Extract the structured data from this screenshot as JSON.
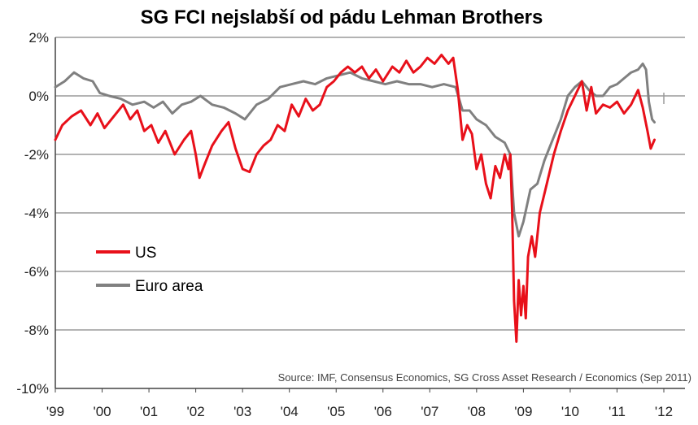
{
  "chart_data": {
    "type": "line",
    "title": "SG FCI nejslabší od pádu Lehman Brothers",
    "xlabel": "",
    "ylabel": "",
    "x_tick_labels": [
      "'99",
      "'00",
      "'01",
      "'02",
      "'03",
      "'04",
      "'05",
      "'06",
      "'07",
      "'08",
      "'09",
      "'10",
      "'11",
      "'12"
    ],
    "x_range": [
      1999,
      2012
    ],
    "y_tick_labels": [
      "2%",
      "0%",
      "-2%",
      "-4%",
      "-6%",
      "-8%",
      "-10%"
    ],
    "y_ticks": [
      2,
      0,
      -2,
      -4,
      -6,
      -8,
      -10
    ],
    "ylim": [
      -10,
      2
    ],
    "grid": "horizontal",
    "legend_position": "left-middle",
    "source": "Source: IMF, Consensus Economics, SG Cross Asset Research / Economics (Sep 2011)",
    "series": [
      {
        "name": "US",
        "color": "#e8101a",
        "points": [
          [
            1999.0,
            -1.5
          ],
          [
            1999.15,
            -1.0
          ],
          [
            1999.35,
            -0.7
          ],
          [
            1999.55,
            -0.5
          ],
          [
            1999.75,
            -1.0
          ],
          [
            1999.9,
            -0.6
          ],
          [
            2000.05,
            -1.1
          ],
          [
            2000.25,
            -0.7
          ],
          [
            2000.45,
            -0.3
          ],
          [
            2000.6,
            -0.8
          ],
          [
            2000.75,
            -0.5
          ],
          [
            2000.9,
            -1.2
          ],
          [
            2001.05,
            -1.0
          ],
          [
            2001.2,
            -1.6
          ],
          [
            2001.35,
            -1.2
          ],
          [
            2001.55,
            -2.0
          ],
          [
            2001.75,
            -1.5
          ],
          [
            2001.9,
            -1.2
          ],
          [
            2002.0,
            -2.0
          ],
          [
            2002.08,
            -2.8
          ],
          [
            2002.2,
            -2.3
          ],
          [
            2002.35,
            -1.7
          ],
          [
            2002.55,
            -1.2
          ],
          [
            2002.7,
            -0.9
          ],
          [
            2002.85,
            -1.8
          ],
          [
            2003.0,
            -2.5
          ],
          [
            2003.15,
            -2.6
          ],
          [
            2003.3,
            -2.0
          ],
          [
            2003.45,
            -1.7
          ],
          [
            2003.6,
            -1.5
          ],
          [
            2003.75,
            -1.0
          ],
          [
            2003.9,
            -1.2
          ],
          [
            2004.05,
            -0.3
          ],
          [
            2004.2,
            -0.7
          ],
          [
            2004.35,
            -0.1
          ],
          [
            2004.5,
            -0.5
          ],
          [
            2004.65,
            -0.3
          ],
          [
            2004.8,
            0.3
          ],
          [
            2004.95,
            0.5
          ],
          [
            2005.1,
            0.8
          ],
          [
            2005.25,
            1.0
          ],
          [
            2005.4,
            0.8
          ],
          [
            2005.55,
            1.0
          ],
          [
            2005.7,
            0.6
          ],
          [
            2005.85,
            0.9
          ],
          [
            2006.0,
            0.5
          ],
          [
            2006.2,
            1.0
          ],
          [
            2006.35,
            0.8
          ],
          [
            2006.5,
            1.2
          ],
          [
            2006.65,
            0.8
          ],
          [
            2006.8,
            1.0
          ],
          [
            2006.95,
            1.3
          ],
          [
            2007.1,
            1.1
          ],
          [
            2007.25,
            1.4
          ],
          [
            2007.4,
            1.1
          ],
          [
            2007.5,
            1.3
          ],
          [
            2007.6,
            0.2
          ],
          [
            2007.7,
            -1.5
          ],
          [
            2007.8,
            -1.0
          ],
          [
            2007.9,
            -1.3
          ],
          [
            2008.0,
            -2.5
          ],
          [
            2008.1,
            -2.0
          ],
          [
            2008.2,
            -3.0
          ],
          [
            2008.3,
            -3.5
          ],
          [
            2008.4,
            -2.4
          ],
          [
            2008.5,
            -2.8
          ],
          [
            2008.6,
            -2.0
          ],
          [
            2008.68,
            -2.5
          ],
          [
            2008.72,
            -2.0
          ],
          [
            2008.76,
            -4.0
          ],
          [
            2008.8,
            -7.0
          ],
          [
            2008.85,
            -8.4
          ],
          [
            2008.9,
            -6.3
          ],
          [
            2008.95,
            -7.5
          ],
          [
            2009.0,
            -6.5
          ],
          [
            2009.05,
            -7.6
          ],
          [
            2009.1,
            -5.5
          ],
          [
            2009.18,
            -4.8
          ],
          [
            2009.25,
            -5.5
          ],
          [
            2009.35,
            -4.0
          ],
          [
            2009.5,
            -3.0
          ],
          [
            2009.65,
            -2.0
          ],
          [
            2009.8,
            -1.2
          ],
          [
            2009.95,
            -0.5
          ],
          [
            2010.1,
            0.0
          ],
          [
            2010.25,
            0.5
          ],
          [
            2010.35,
            -0.5
          ],
          [
            2010.45,
            0.3
          ],
          [
            2010.55,
            -0.6
          ],
          [
            2010.7,
            -0.3
          ],
          [
            2010.85,
            -0.4
          ],
          [
            2011.0,
            -0.2
          ],
          [
            2011.15,
            -0.6
          ],
          [
            2011.3,
            -0.3
          ],
          [
            2011.45,
            0.2
          ],
          [
            2011.55,
            -0.4
          ],
          [
            2011.65,
            -1.2
          ],
          [
            2011.72,
            -1.8
          ],
          [
            2011.8,
            -1.5
          ]
        ]
      },
      {
        "name": "Euro area",
        "color": "#808080",
        "points": [
          [
            1999.0,
            0.3
          ],
          [
            1999.2,
            0.5
          ],
          [
            1999.4,
            0.8
          ],
          [
            1999.6,
            0.6
          ],
          [
            1999.8,
            0.5
          ],
          [
            1999.95,
            0.1
          ],
          [
            2000.15,
            0.0
          ],
          [
            2000.4,
            -0.1
          ],
          [
            2000.65,
            -0.3
          ],
          [
            2000.9,
            -0.2
          ],
          [
            2001.1,
            -0.4
          ],
          [
            2001.3,
            -0.2
          ],
          [
            2001.5,
            -0.6
          ],
          [
            2001.7,
            -0.3
          ],
          [
            2001.9,
            -0.2
          ],
          [
            2002.1,
            0.0
          ],
          [
            2002.35,
            -0.3
          ],
          [
            2002.6,
            -0.4
          ],
          [
            2002.85,
            -0.6
          ],
          [
            2003.05,
            -0.8
          ],
          [
            2003.3,
            -0.3
          ],
          [
            2003.55,
            -0.1
          ],
          [
            2003.8,
            0.3
          ],
          [
            2004.05,
            0.4
          ],
          [
            2004.3,
            0.5
          ],
          [
            2004.55,
            0.4
          ],
          [
            2004.8,
            0.6
          ],
          [
            2005.05,
            0.7
          ],
          [
            2005.3,
            0.8
          ],
          [
            2005.55,
            0.6
          ],
          [
            2005.8,
            0.5
          ],
          [
            2006.05,
            0.4
          ],
          [
            2006.3,
            0.5
          ],
          [
            2006.55,
            0.4
          ],
          [
            2006.8,
            0.4
          ],
          [
            2007.05,
            0.3
          ],
          [
            2007.3,
            0.4
          ],
          [
            2007.55,
            0.3
          ],
          [
            2007.7,
            -0.5
          ],
          [
            2007.85,
            -0.5
          ],
          [
            2008.0,
            -0.8
          ],
          [
            2008.2,
            -1.0
          ],
          [
            2008.4,
            -1.4
          ],
          [
            2008.6,
            -1.6
          ],
          [
            2008.72,
            -2.0
          ],
          [
            2008.8,
            -4.0
          ],
          [
            2008.9,
            -4.8
          ],
          [
            2009.0,
            -4.3
          ],
          [
            2009.15,
            -3.2
          ],
          [
            2009.3,
            -3.0
          ],
          [
            2009.45,
            -2.2
          ],
          [
            2009.6,
            -1.6
          ],
          [
            2009.8,
            -0.8
          ],
          [
            2009.95,
            0.0
          ],
          [
            2010.1,
            0.3
          ],
          [
            2010.25,
            0.5
          ],
          [
            2010.4,
            0.2
          ],
          [
            2010.55,
            0.0
          ],
          [
            2010.7,
            0.0
          ],
          [
            2010.85,
            0.3
          ],
          [
            2011.0,
            0.4
          ],
          [
            2011.15,
            0.6
          ],
          [
            2011.3,
            0.8
          ],
          [
            2011.45,
            0.9
          ],
          [
            2011.55,
            1.1
          ],
          [
            2011.62,
            0.9
          ],
          [
            2011.68,
            -0.2
          ],
          [
            2011.75,
            -0.8
          ],
          [
            2011.8,
            -0.9
          ]
        ]
      }
    ]
  }
}
